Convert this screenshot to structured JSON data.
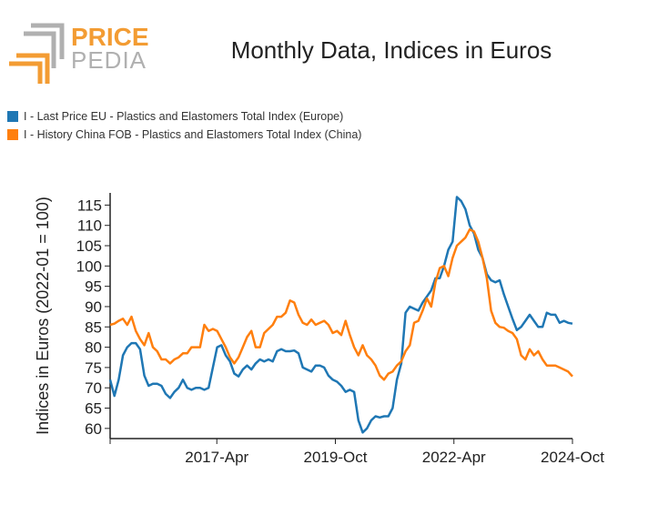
{
  "logo": {
    "text_top": "PRICE",
    "text_bottom": "PEDIA"
  },
  "title": "Monthly Data, Indices in Euros",
  "colors": {
    "europe": "#1f77b4",
    "china": "#ff7f0e",
    "logo_orange": "#f39c33",
    "logo_gray": "#b0b0b0"
  },
  "chart_data": {
    "type": "line",
    "title": "Monthly Data, Indices in Euros",
    "xlabel": "",
    "ylabel": "Indices in Euros (2022-01 = 100)",
    "x_start": "2015-01",
    "x_end": "2024-10",
    "xticks": [
      "2017-Apr",
      "2019-Oct",
      "2022-Apr",
      "2024-Oct"
    ],
    "yticks": [
      60,
      65,
      70,
      75,
      80,
      85,
      90,
      95,
      100,
      105,
      110,
      115
    ],
    "ylim": [
      57.5,
      118
    ],
    "grid": false,
    "legend_position": "top-left",
    "series": [
      {
        "name": "I - Last Price EU - Plastics and Elastomers Total Index (Europe)",
        "color": "#1f77b4",
        "values": [
          72,
          68,
          72,
          78,
          80,
          81,
          81,
          79.5,
          73,
          70.5,
          71,
          71,
          70.5,
          68.5,
          67.5,
          69,
          70,
          72,
          70,
          69.5,
          70,
          70,
          69.5,
          70,
          75,
          80,
          80.5,
          78,
          76.5,
          73.5,
          72.8,
          74.5,
          75.5,
          74.5,
          76,
          77,
          76.5,
          77,
          76.5,
          79,
          79.5,
          79,
          79,
          79.2,
          78.5,
          75,
          74.5,
          74,
          75.5,
          75.5,
          75,
          73,
          72,
          71.5,
          70.5,
          69,
          69.5,
          69,
          62,
          59,
          60,
          62,
          63,
          62.7,
          63,
          63,
          65,
          72,
          76,
          88.5,
          90,
          89.5,
          89,
          91,
          92.5,
          94,
          97,
          97,
          100,
          104,
          106,
          117,
          116,
          114,
          110,
          108,
          104,
          102,
          98,
          96.5,
          96,
          96.5,
          93,
          90,
          87,
          84.2,
          85,
          86.5,
          88,
          86.5,
          85,
          85,
          88.5,
          88,
          88,
          86,
          86.5,
          86,
          85.8
        ]
      },
      {
        "name": "I - History China FOB - Plastics and Elastomers Total Index (China)",
        "color": "#ff7f0e",
        "values": [
          85.5,
          85.8,
          86.5,
          87,
          85.5,
          87.5,
          84,
          82,
          80.5,
          83.5,
          80,
          79,
          77,
          77,
          76,
          77,
          77.5,
          78.5,
          78.5,
          80,
          80,
          80,
          85.5,
          84,
          84.5,
          84,
          82,
          80,
          77.5,
          76,
          77.5,
          80,
          82.5,
          84,
          80,
          80,
          83.5,
          84.5,
          85.5,
          87.5,
          87.5,
          88.5,
          91.5,
          91,
          88,
          86,
          85.5,
          86.8,
          85.5,
          86,
          86.5,
          85.5,
          83.5,
          84,
          83,
          86.5,
          83,
          80,
          78,
          80.5,
          78,
          77,
          75.5,
          73,
          72,
          73.5,
          74,
          75.5,
          76.5,
          79,
          80.5,
          86,
          86.5,
          89,
          92,
          90,
          96,
          99.5,
          100,
          97.5,
          102,
          105,
          106,
          107,
          109,
          108.5,
          106,
          102,
          97,
          89,
          86,
          85,
          84.8,
          84,
          83.5,
          82,
          78,
          77,
          79.5,
          78,
          79,
          77,
          75.5,
          75.5,
          75.5,
          75,
          74.5,
          74,
          72.8
        ]
      }
    ]
  }
}
